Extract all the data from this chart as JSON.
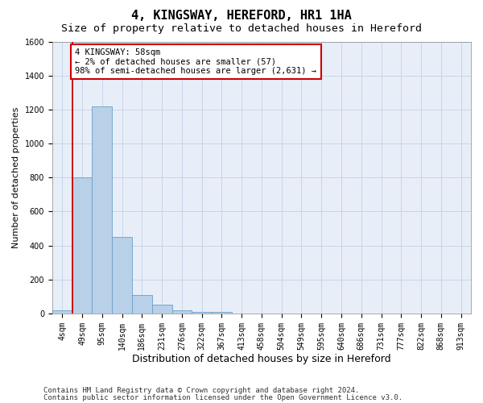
{
  "title": "4, KINGSWAY, HEREFORD, HR1 1HA",
  "subtitle": "Size of property relative to detached houses in Hereford",
  "xlabel": "Distribution of detached houses by size in Hereford",
  "ylabel": "Number of detached properties",
  "categories": [
    "4sqm",
    "49sqm",
    "95sqm",
    "140sqm",
    "186sqm",
    "231sqm",
    "276sqm",
    "322sqm",
    "367sqm",
    "413sqm",
    "458sqm",
    "504sqm",
    "549sqm",
    "595sqm",
    "640sqm",
    "686sqm",
    "731sqm",
    "777sqm",
    "822sqm",
    "868sqm",
    "913sqm"
  ],
  "values": [
    20,
    800,
    1220,
    450,
    110,
    50,
    20,
    10,
    10,
    0,
    0,
    0,
    0,
    0,
    0,
    0,
    0,
    0,
    0,
    0,
    0
  ],
  "bar_color": "#b8d0e8",
  "bar_edge_color": "#6a9fc8",
  "grid_color": "#c8d4e8",
  "background_color": "#e8eef8",
  "annotation_line1": "4 KINGSWAY: 58sqm",
  "annotation_line2": "← 2% of detached houses are smaller (57)",
  "annotation_line3": "98% of semi-detached houses are larger (2,631) →",
  "redline_bar_index": 1,
  "ylim_max": 1600,
  "yticks": [
    0,
    200,
    400,
    600,
    800,
    1000,
    1200,
    1400,
    1600
  ],
  "footer_line1": "Contains HM Land Registry data © Crown copyright and database right 2024.",
  "footer_line2": "Contains public sector information licensed under the Open Government Licence v3.0.",
  "title_fontsize": 11,
  "subtitle_fontsize": 9.5,
  "xlabel_fontsize": 9,
  "ylabel_fontsize": 8,
  "tick_fontsize": 7,
  "annotation_fontsize": 7.5,
  "footer_fontsize": 6.5
}
